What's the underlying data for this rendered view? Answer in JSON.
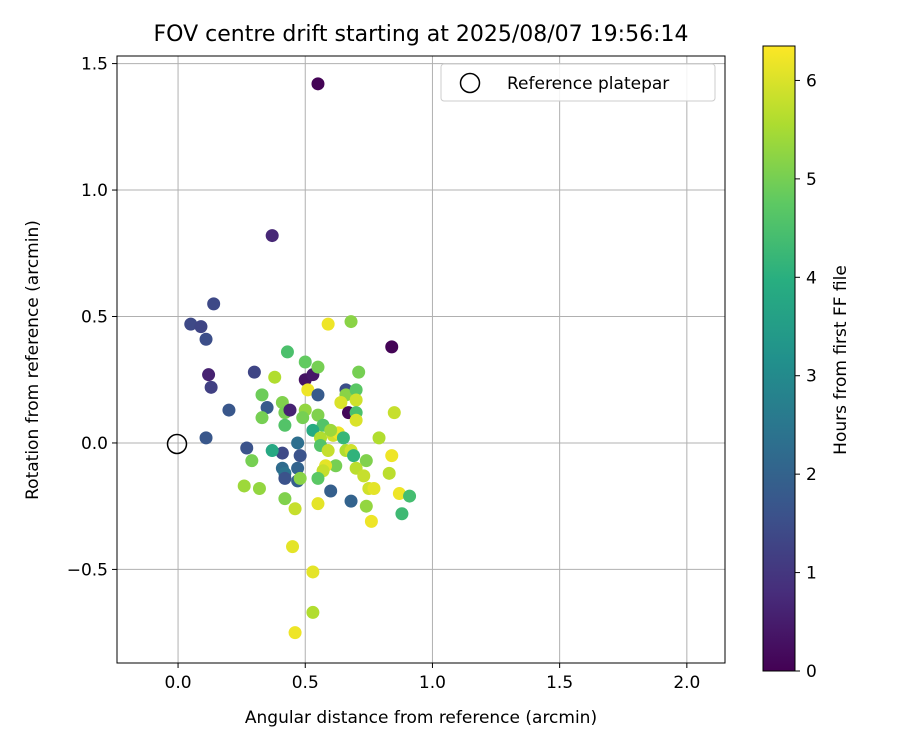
{
  "chart_data": {
    "type": "scatter",
    "title": "FOV centre drift starting at 2025/08/07 19:56:14",
    "xlabel": "Angular distance from reference (arcmin)",
    "ylabel": "Rotation from reference (arcmin)",
    "xlim": [
      -0.24,
      2.15
    ],
    "ylim": [
      -0.87,
      1.53
    ],
    "xticks": [
      0.0,
      0.5,
      1.0,
      1.5,
      2.0
    ],
    "xtick_labels": [
      "0.0",
      "0.5",
      "1.0",
      "1.5",
      "2.0"
    ],
    "yticks": [
      -0.5,
      0.0,
      0.5,
      1.0,
      1.5
    ],
    "ytick_labels": [
      "−0.5",
      "0.0",
      "0.5",
      "1.0",
      "1.5"
    ],
    "grid": true,
    "legend": {
      "placement": "top-right",
      "entries": [
        "Reference platepar"
      ]
    },
    "reference_point": {
      "x": 0.0,
      "y": 0.0,
      "label": "Reference platepar"
    },
    "colorbar": {
      "label": "Hours from first FF file",
      "colormap": "viridis",
      "range": [
        0,
        6.35
      ],
      "ticks": [
        0,
        1,
        2,
        3,
        4,
        5,
        6
      ],
      "tick_labels": [
        "0",
        "1",
        "2",
        "3",
        "4",
        "5",
        "6"
      ]
    },
    "points": [
      {
        "x": 0.55,
        "y": 1.42,
        "c": 0.05
      },
      {
        "x": 0.37,
        "y": 0.82,
        "c": 0.7
      },
      {
        "x": 0.84,
        "y": 0.38,
        "c": 0.05
      },
      {
        "x": 0.05,
        "y": 0.47,
        "c": 1.4
      },
      {
        "x": 0.09,
        "y": 0.46,
        "c": 1.3
      },
      {
        "x": 0.14,
        "y": 0.55,
        "c": 1.4
      },
      {
        "x": 0.11,
        "y": 0.41,
        "c": 1.5
      },
      {
        "x": 0.12,
        "y": 0.27,
        "c": 0.6
      },
      {
        "x": 0.13,
        "y": 0.22,
        "c": 1.2
      },
      {
        "x": 0.2,
        "y": 0.13,
        "c": 1.7
      },
      {
        "x": 0.11,
        "y": 0.02,
        "c": 1.7
      },
      {
        "x": 0.3,
        "y": 0.28,
        "c": 1.3
      },
      {
        "x": 0.35,
        "y": 0.14,
        "c": 1.8
      },
      {
        "x": 0.27,
        "y": -0.02,
        "c": 1.6
      },
      {
        "x": 0.43,
        "y": 0.36,
        "c": 4.5
      },
      {
        "x": 0.5,
        "y": 0.32,
        "c": 4.8
      },
      {
        "x": 0.5,
        "y": 0.25,
        "c": 0.3
      },
      {
        "x": 0.53,
        "y": 0.27,
        "c": 0.4
      },
      {
        "x": 0.55,
        "y": 0.3,
        "c": 5.0
      },
      {
        "x": 0.59,
        "y": 0.47,
        "c": 6.2
      },
      {
        "x": 0.68,
        "y": 0.48,
        "c": 5.2
      },
      {
        "x": 0.38,
        "y": 0.26,
        "c": 5.6
      },
      {
        "x": 0.33,
        "y": 0.19,
        "c": 4.9
      },
      {
        "x": 0.33,
        "y": 0.1,
        "c": 5.0
      },
      {
        "x": 0.41,
        "y": 0.16,
        "c": 5.1
      },
      {
        "x": 0.42,
        "y": 0.12,
        "c": 5.0
      },
      {
        "x": 0.44,
        "y": 0.13,
        "c": 0.6
      },
      {
        "x": 0.42,
        "y": 0.07,
        "c": 4.6
      },
      {
        "x": 0.5,
        "y": 0.13,
        "c": 5.3
      },
      {
        "x": 0.49,
        "y": 0.1,
        "c": 5.0
      },
      {
        "x": 0.51,
        "y": 0.21,
        "c": 6.2
      },
      {
        "x": 0.55,
        "y": 0.19,
        "c": 1.8
      },
      {
        "x": 0.55,
        "y": 0.11,
        "c": 5.1
      },
      {
        "x": 0.57,
        "y": 0.07,
        "c": 4.6
      },
      {
        "x": 0.53,
        "y": 0.05,
        "c": 3.9
      },
      {
        "x": 0.56,
        "y": 0.02,
        "c": 5.6
      },
      {
        "x": 0.56,
        "y": -0.01,
        "c": 4.6
      },
      {
        "x": 0.59,
        "y": -0.03,
        "c": 5.8
      },
      {
        "x": 0.61,
        "y": 0.03,
        "c": 5.9
      },
      {
        "x": 0.63,
        "y": 0.04,
        "c": 6.2
      },
      {
        "x": 0.65,
        "y": 0.02,
        "c": 4.2
      },
      {
        "x": 0.6,
        "y": 0.05,
        "c": 5.4
      },
      {
        "x": 0.66,
        "y": 0.21,
        "c": 1.5
      },
      {
        "x": 0.66,
        "y": 0.19,
        "c": 5.2
      },
      {
        "x": 0.64,
        "y": 0.16,
        "c": 6.0
      },
      {
        "x": 0.67,
        "y": 0.12,
        "c": 0.1
      },
      {
        "x": 0.7,
        "y": 0.21,
        "c": 4.7
      },
      {
        "x": 0.71,
        "y": 0.28,
        "c": 5.0
      },
      {
        "x": 0.7,
        "y": 0.17,
        "c": 5.9
      },
      {
        "x": 0.7,
        "y": 0.12,
        "c": 4.5
      },
      {
        "x": 0.7,
        "y": 0.09,
        "c": 6.0
      },
      {
        "x": 0.66,
        "y": -0.03,
        "c": 5.6
      },
      {
        "x": 0.68,
        "y": -0.03,
        "c": 5.9
      },
      {
        "x": 0.69,
        "y": -0.05,
        "c": 4.1
      },
      {
        "x": 0.74,
        "y": -0.07,
        "c": 5.1
      },
      {
        "x": 0.7,
        "y": -0.1,
        "c": 5.7
      },
      {
        "x": 0.73,
        "y": -0.13,
        "c": 5.8
      },
      {
        "x": 0.75,
        "y": -0.18,
        "c": 5.9
      },
      {
        "x": 0.77,
        "y": -0.18,
        "c": 6.1
      },
      {
        "x": 0.74,
        "y": -0.25,
        "c": 5.3
      },
      {
        "x": 0.76,
        "y": -0.31,
        "c": 6.2
      },
      {
        "x": 0.79,
        "y": 0.02,
        "c": 5.6
      },
      {
        "x": 0.83,
        "y": -0.12,
        "c": 5.7
      },
      {
        "x": 0.84,
        "y": -0.05,
        "c": 6.2
      },
      {
        "x": 0.85,
        "y": 0.12,
        "c": 5.8
      },
      {
        "x": 0.87,
        "y": -0.2,
        "c": 6.2
      },
      {
        "x": 0.91,
        "y": -0.21,
        "c": 4.4
      },
      {
        "x": 0.88,
        "y": -0.28,
        "c": 4.3
      },
      {
        "x": 0.6,
        "y": -0.19,
        "c": 1.9
      },
      {
        "x": 0.68,
        "y": -0.23,
        "c": 2.0
      },
      {
        "x": 0.62,
        "y": -0.09,
        "c": 5.0
      },
      {
        "x": 0.58,
        "y": -0.09,
        "c": 6.1
      },
      {
        "x": 0.57,
        "y": -0.11,
        "c": 5.8
      },
      {
        "x": 0.55,
        "y": -0.14,
        "c": 4.7
      },
      {
        "x": 0.55,
        "y": -0.24,
        "c": 6.1
      },
      {
        "x": 0.47,
        "y": 0.0,
        "c": 2.3
      },
      {
        "x": 0.48,
        "y": -0.05,
        "c": 1.6
      },
      {
        "x": 0.41,
        "y": -0.04,
        "c": 1.4
      },
      {
        "x": 0.37,
        "y": -0.03,
        "c": 3.8
      },
      {
        "x": 0.29,
        "y": -0.07,
        "c": 5.0
      },
      {
        "x": 0.41,
        "y": -0.1,
        "c": 2.2
      },
      {
        "x": 0.42,
        "y": -0.12,
        "c": 2.4
      },
      {
        "x": 0.47,
        "y": -0.1,
        "c": 2.0
      },
      {
        "x": 0.42,
        "y": -0.14,
        "c": 1.6
      },
      {
        "x": 0.47,
        "y": -0.15,
        "c": 1.9
      },
      {
        "x": 0.48,
        "y": -0.14,
        "c": 5.2
      },
      {
        "x": 0.26,
        "y": -0.17,
        "c": 5.4
      },
      {
        "x": 0.32,
        "y": -0.18,
        "c": 5.3
      },
      {
        "x": 0.42,
        "y": -0.22,
        "c": 5.1
      },
      {
        "x": 0.46,
        "y": -0.26,
        "c": 5.8
      },
      {
        "x": 0.45,
        "y": -0.41,
        "c": 6.1
      },
      {
        "x": 0.53,
        "y": -0.51,
        "c": 6.1
      },
      {
        "x": 0.53,
        "y": -0.67,
        "c": 5.6
      },
      {
        "x": 0.46,
        "y": -0.75,
        "c": 6.2
      }
    ]
  }
}
